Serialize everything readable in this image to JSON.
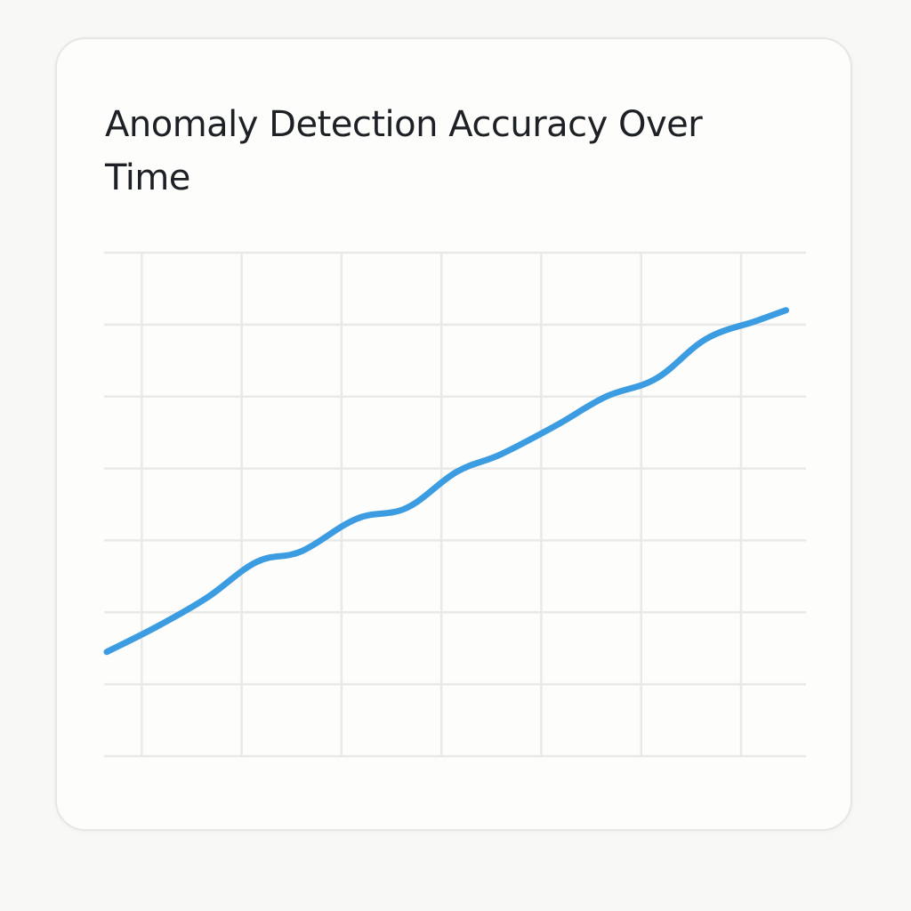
{
  "chart_data": {
    "type": "line",
    "title": "Anomaly Detection Accuracy Over Time",
    "xlabel": "",
    "ylabel": "",
    "xlim": [
      0,
      7
    ],
    "ylim": [
      0,
      7
    ],
    "grid": true,
    "x_gridlines": [
      0.35,
      1.35,
      2.35,
      3.35,
      4.35,
      5.35,
      6.35
    ],
    "y_gridlines": [
      0,
      1,
      2,
      3,
      4,
      5,
      6,
      7
    ],
    "series": [
      {
        "color": "#3b9ce2",
        "x": [
          0,
          0.5,
          1,
          1.5,
          1.95,
          2.5,
          3,
          3.5,
          3.95,
          4.5,
          5,
          5.5,
          6,
          6.5,
          6.8
        ],
        "y": [
          1.45,
          1.8,
          2.2,
          2.7,
          2.85,
          3.3,
          3.45,
          3.95,
          4.2,
          4.6,
          5.0,
          5.25,
          5.8,
          6.05,
          6.2
        ]
      }
    ]
  }
}
